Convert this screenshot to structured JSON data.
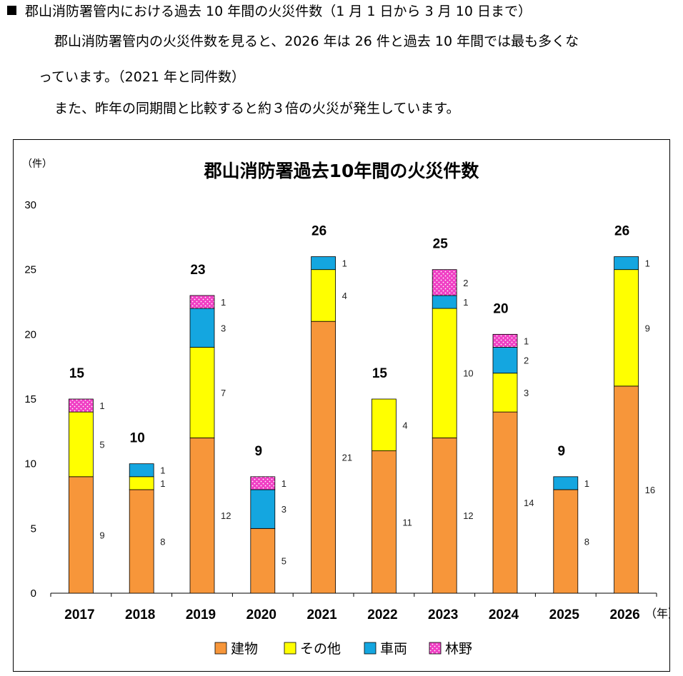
{
  "text": {
    "heading": "郡山消防署管内における過去 10 年間の火災件数（1 月 1 日から 3 月 10 日まで）",
    "paragraph1_line1": "郡山消防署管内の火災件数を見ると、2026 年は 26 件と過去 10 年間では最も多くな",
    "paragraph1_line2": "っています。（2021 年と同件数）",
    "paragraph2": "また、昨年の同期間と比較すると約３倍の火災が発生しています。"
  },
  "colors": {
    "建物": "#F7963A",
    "その他": "#FFFF00",
    "車両": "#14A6E0",
    "林野": "#F03FC4"
  },
  "chart_data": {
    "type": "bar",
    "stacked": true,
    "title": "郡山消防署過去10年間の火災件数",
    "ylabel": "（件）",
    "xlabel": "（年）",
    "ylim": [
      0,
      30
    ],
    "yticks": [
      0,
      5,
      10,
      15,
      20,
      25,
      30
    ],
    "categories": [
      "2017",
      "2018",
      "2019",
      "2020",
      "2021",
      "2022",
      "2023",
      "2024",
      "2025",
      "2026"
    ],
    "series": [
      {
        "name": "建物",
        "values": [
          9,
          8,
          12,
          5,
          21,
          11,
          12,
          14,
          8,
          16
        ]
      },
      {
        "name": "その他",
        "values": [
          5,
          1,
          7,
          0,
          4,
          4,
          10,
          3,
          0,
          9
        ]
      },
      {
        "name": "車両",
        "values": [
          0,
          1,
          3,
          3,
          1,
          0,
          1,
          2,
          1,
          1
        ]
      },
      {
        "name": "林野",
        "values": [
          1,
          0,
          1,
          1,
          0,
          0,
          2,
          1,
          0,
          0
        ]
      }
    ],
    "totals": [
      15,
      10,
      23,
      9,
      26,
      15,
      25,
      20,
      9,
      26
    ],
    "legend": [
      "建物",
      "その他",
      "車両",
      "林野"
    ]
  }
}
